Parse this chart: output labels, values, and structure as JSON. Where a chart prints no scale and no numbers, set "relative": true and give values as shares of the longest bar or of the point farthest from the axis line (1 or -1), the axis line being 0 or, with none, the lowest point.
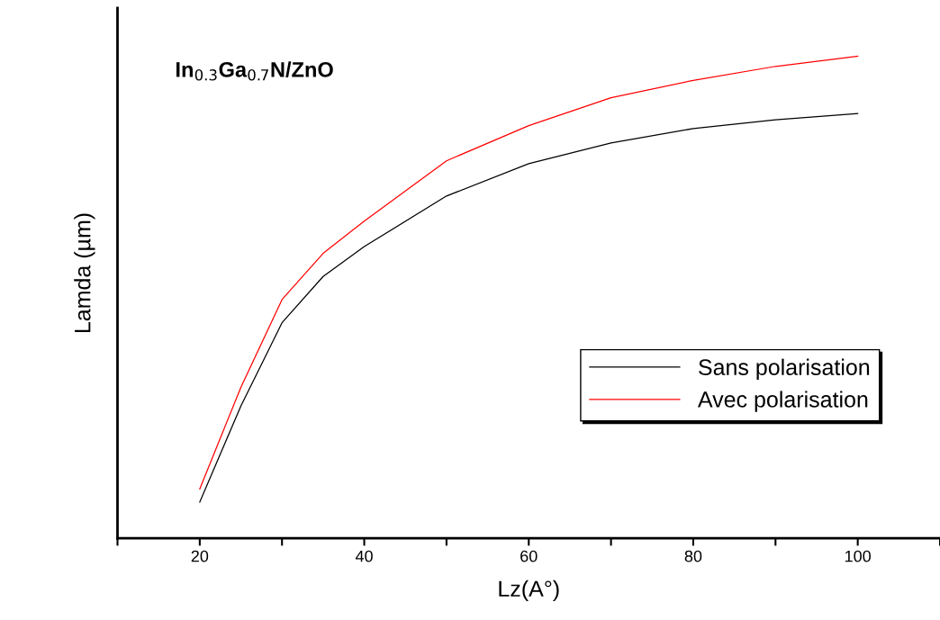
{
  "chart_data": {
    "type": "line",
    "relative": true,
    "xlabel": "Lz(A°)",
    "ylabel": "Lamda (µm)",
    "annotations": [
      "In$_{0.3}$Ga$_{0.7}$N/ZnO"
    ],
    "x": [
      20,
      25,
      30,
      35,
      40,
      50,
      60,
      70,
      80,
      90,
      100
    ],
    "xlim": [
      10,
      110
    ],
    "xticks": [
      {
        "value": 10,
        "label": null
      },
      20,
      {
        "value": 30,
        "label": null
      },
      40,
      {
        "value": 50,
        "label": null
      },
      60,
      {
        "value": 70,
        "label": null
      },
      80,
      {
        "value": 90,
        "label": null
      },
      100,
      {
        "value": 110,
        "label": null
      }
    ],
    "tick_labels": "x",
    "legend": "bottom right",
    "grid": false,
    "series": [
      {
        "name": "Sans polarisation",
        "color": "#000000",
        "values": [
          0.075,
          0.274,
          0.447,
          0.543,
          0.605,
          0.71,
          0.777,
          0.82,
          0.85,
          0.868,
          0.881
        ]
      },
      {
        "name": "Avec polarisation",
        "color": "#ff0000",
        "values": [
          0.102,
          0.313,
          0.495,
          0.591,
          0.658,
          0.783,
          0.856,
          0.914,
          0.95,
          0.979,
          1.0
        ]
      }
    ]
  }
}
